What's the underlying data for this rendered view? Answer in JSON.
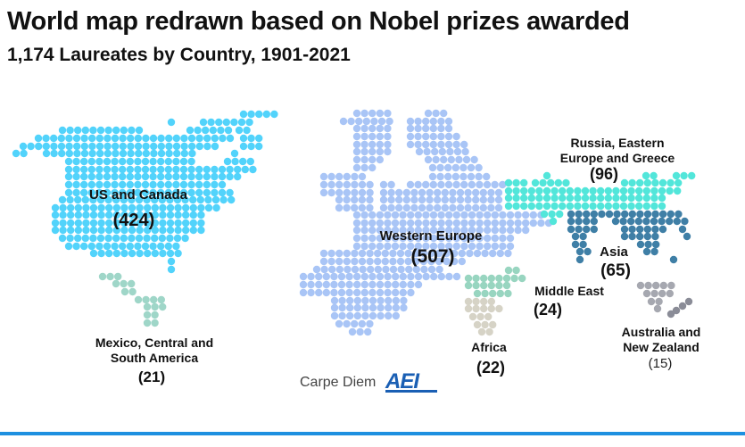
{
  "title": "World map redrawn based on Nobel prizes awarded",
  "subtitle": "1,174 Laureates by Country, 1901-2021",
  "regions": {
    "us_canada": {
      "label": "US and Canada",
      "count": "(424)",
      "color": "#52d3fb"
    },
    "mexico_south_america": {
      "label_line1": "Mexico, Central and",
      "label_line2": "South America",
      "count": "(21)",
      "color": "#9fd6c8"
    },
    "western_europe": {
      "label": "Western Europe",
      "count": "(507)",
      "color": "#a9c5f6"
    },
    "russia_eastern_europe": {
      "label_line1": "Russia, Eastern",
      "label_line2": "Europe and Greece",
      "count": "(96)",
      "color": "#52e6da"
    },
    "asia": {
      "label": "Asia",
      "count": "(65)",
      "color": "#3f7fa6"
    },
    "middle_east": {
      "label": "Middle East",
      "count": "(24)",
      "color": "#98d5c0"
    },
    "africa": {
      "label": "Africa",
      "count": "(22)",
      "color": "#d6d3c6"
    },
    "australia_nz": {
      "label_line1": "Australia and",
      "label_line2": "New Zealand",
      "count": "(15)",
      "color": "#a6a8b0",
      "nz_color": "#8a8c97"
    }
  },
  "credit": "Carpe Diem",
  "logo": "AEI"
}
